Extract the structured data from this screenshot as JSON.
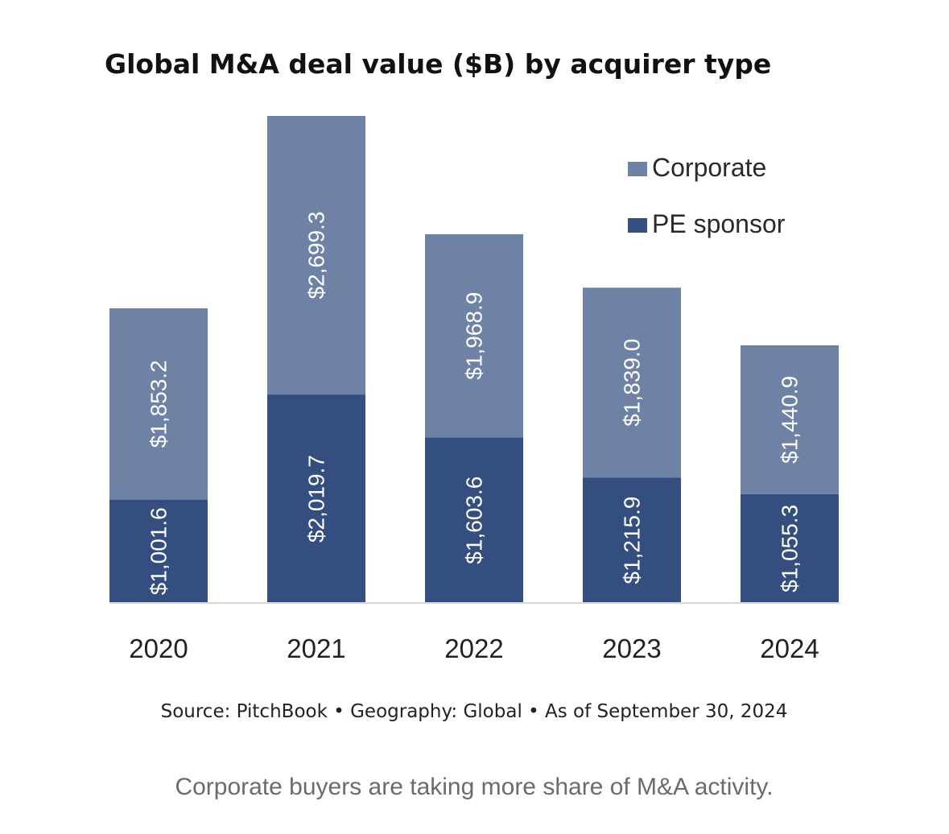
{
  "chart_data": {
    "type": "bar",
    "stacked": true,
    "title": "Global M&A deal value ($B) by acquirer type",
    "categories": [
      "2020",
      "2021",
      "2022",
      "2023",
      "2024"
    ],
    "series": [
      {
        "name": "PE sponsor",
        "color": "#344f7f",
        "values": [
          1001.6,
          2019.7,
          1603.6,
          1215.9,
          1055.3
        ],
        "labels": [
          "$1,001.6",
          "$2,019.7",
          "$1,603.6",
          "$1,215.9",
          "$1,055.3"
        ]
      },
      {
        "name": "Corporate",
        "color": "#6e82a6",
        "values": [
          1853.2,
          2699.3,
          1968.9,
          1839.0,
          1440.9
        ],
        "labels": [
          "$1,853.2",
          "$2,699.3",
          "$1,968.9",
          "$1,839.0",
          "$1,440.9"
        ]
      }
    ],
    "ylim": [
      0,
      4719
    ],
    "grid": false,
    "legend_position": "top-right",
    "source": "Source: PitchBook • Geography: Global • As of September 30, 2024"
  },
  "caption": "Corporate buyers are taking more share of M&A activity."
}
